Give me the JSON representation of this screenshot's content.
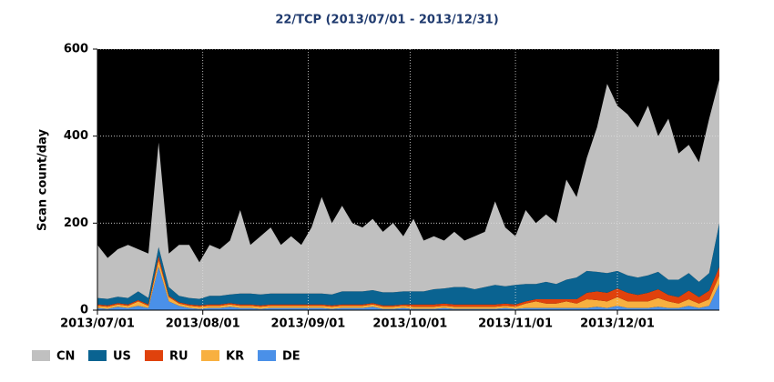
{
  "chart_data": {
    "type": "stacked_area",
    "title": "22/TCP (2013/07/01 - 2013/12/31)",
    "y_label": "Scan count/day",
    "x": [
      "2013/07/01",
      "2013/07/04",
      "2013/07/07",
      "2013/07/10",
      "2013/07/13",
      "2013/07/16",
      "2013/07/19",
      "2013/07/22",
      "2013/07/25",
      "2013/07/28",
      "2013/07/31",
      "2013/08/03",
      "2013/08/06",
      "2013/08/09",
      "2013/08/12",
      "2013/08/15",
      "2013/08/18",
      "2013/08/21",
      "2013/08/24",
      "2013/08/27",
      "2013/08/30",
      "2013/09/02",
      "2013/09/05",
      "2013/09/08",
      "2013/09/11",
      "2013/09/14",
      "2013/09/17",
      "2013/09/20",
      "2013/09/23",
      "2013/09/26",
      "2013/09/29",
      "2013/10/02",
      "2013/10/05",
      "2013/10/08",
      "2013/10/11",
      "2013/10/14",
      "2013/10/17",
      "2013/10/20",
      "2013/10/23",
      "2013/10/26",
      "2013/10/29",
      "2013/11/01",
      "2013/11/04",
      "2013/11/07",
      "2013/11/10",
      "2013/11/13",
      "2013/11/16",
      "2013/11/19",
      "2013/11/22",
      "2013/11/25",
      "2013/11/28",
      "2013/12/01",
      "2013/12/04",
      "2013/12/07",
      "2013/12/10",
      "2013/12/13",
      "2013/12/16",
      "2013/12/19",
      "2013/12/22",
      "2013/12/25",
      "2013/12/28",
      "2013/12/31"
    ],
    "series": [
      {
        "name": "CN",
        "color": "#c0c0c0",
        "values": [
          122,
          94,
          109,
          122,
          97,
          102,
          240,
          77,
          117,
          122,
          84,
          117,
          107,
          124,
          192,
          112,
          134,
          152,
          112,
          132,
          112,
          152,
          222,
          164,
          197,
          157,
          147,
          164,
          139,
          159,
          127,
          167,
          117,
          122,
          110,
          127,
          107,
          122,
          127,
          192,
          135,
          112,
          170,
          140,
          155,
          140,
          230,
          185,
          260,
          332,
          435,
          380,
          370,
          345,
          390,
          312,
          370,
          290,
          295,
          275,
          355,
          330
        ]
      },
      {
        "name": "US",
        "color": "#0a6391",
        "values": [
          15,
          15,
          15,
          15,
          20,
          15,
          20,
          20,
          15,
          15,
          15,
          20,
          20,
          20,
          25,
          25,
          25,
          25,
          25,
          25,
          25,
          25,
          25,
          25,
          30,
          30,
          30,
          30,
          30,
          30,
          30,
          30,
          30,
          35,
          35,
          40,
          40,
          35,
          40,
          45,
          40,
          45,
          40,
          35,
          40,
          35,
          45,
          50,
          50,
          45,
          45,
          40,
          40,
          40,
          40,
          40,
          35,
          40,
          40,
          35,
          40,
          100
        ]
      },
      {
        "name": "RU",
        "color": "#e0420c",
        "values": [
          3,
          3,
          3,
          3,
          3,
          3,
          10,
          3,
          3,
          3,
          3,
          3,
          3,
          3,
          3,
          3,
          3,
          3,
          3,
          3,
          3,
          3,
          3,
          3,
          3,
          3,
          3,
          3,
          3,
          3,
          3,
          5,
          5,
          5,
          5,
          5,
          5,
          5,
          5,
          5,
          5,
          5,
          5,
          5,
          10,
          10,
          5,
          10,
          15,
          20,
          20,
          20,
          20,
          15,
          20,
          20,
          15,
          15,
          20,
          15,
          20,
          20
        ]
      },
      {
        "name": "KR",
        "color": "#f8b040",
        "values": [
          5,
          5,
          5,
          5,
          10,
          5,
          15,
          10,
          5,
          5,
          5,
          5,
          5,
          5,
          5,
          5,
          5,
          5,
          5,
          5,
          5,
          5,
          5,
          5,
          5,
          5,
          5,
          5,
          5,
          5,
          5,
          5,
          5,
          5,
          5,
          5,
          5,
          5,
          5,
          5,
          5,
          5,
          10,
          15,
          10,
          10,
          15,
          10,
          20,
          15,
          15,
          20,
          15,
          15,
          15,
          20,
          15,
          10,
          15,
          10,
          15,
          20
        ]
      },
      {
        "name": "DE",
        "color": "#4a90e8",
        "values": [
          5,
          3,
          8,
          5,
          10,
          5,
          100,
          20,
          10,
          5,
          3,
          5,
          5,
          8,
          5,
          5,
          3,
          5,
          5,
          5,
          5,
          5,
          5,
          3,
          5,
          5,
          5,
          8,
          3,
          3,
          5,
          3,
          3,
          3,
          5,
          3,
          3,
          3,
          3,
          3,
          5,
          3,
          5,
          5,
          5,
          5,
          5,
          5,
          5,
          8,
          5,
          10,
          5,
          5,
          5,
          8,
          5,
          5,
          10,
          5,
          10,
          60
        ]
      }
    ],
    "xlim": [
      "2013/07/01",
      "2013/12/31"
    ],
    "xticks": [
      "2013/07/01",
      "2013/08/01",
      "2013/09/01",
      "2013/10/01",
      "2013/11/01",
      "2013/12/01"
    ],
    "ylim": [
      0,
      600
    ],
    "yticks": [
      0,
      200,
      400,
      600
    ],
    "grid": true,
    "legend": "bottom"
  }
}
